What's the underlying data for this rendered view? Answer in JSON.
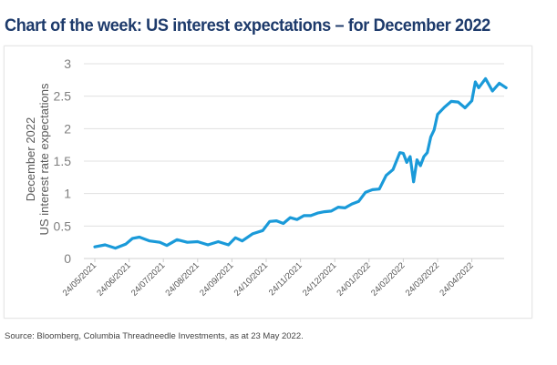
{
  "title": "Chart of the week: US interest expectations – for December 2022",
  "source": "Source: Bloomberg, Columbia Threadneedle Investments, as at 23 May  2022.",
  "colors": {
    "title": "#1d3a6b",
    "line": "#1a9ad9",
    "grid": "#e0e0e0",
    "axis_text": "#7f7f7f"
  },
  "chart_data": {
    "type": "line",
    "title": "Chart of the week: US interest expectations – for December 2022",
    "xlabel": "",
    "ylabel": [
      "December 2022",
      "US interest rate expectations"
    ],
    "ylim": [
      0,
      3
    ],
    "yticks": [
      "0",
      "0.5",
      "1",
      "1.5",
      "2",
      "2.5",
      "3"
    ],
    "ytick_values": [
      0,
      0.5,
      1,
      1.5,
      2,
      2.5,
      3
    ],
    "xticks": [
      "24/05/2021",
      "24/06/2021",
      "24/07/2021",
      "24/08/2021",
      "24/09/2021",
      "24/10/2021",
      "24/11/2021",
      "24/12/2021",
      "24/01/2022",
      "24/02/2022",
      "24/03/2022",
      "24/04/2022"
    ],
    "xlim_months": [
      0,
      12
    ],
    "grid": true,
    "legend": "none",
    "series": [
      {
        "name": "December 2022 US interest rate expectations",
        "x_months": [
          0,
          0.3,
          0.6,
          0.9,
          1.1,
          1.3,
          1.6,
          1.9,
          2.1,
          2.4,
          2.7,
          3.0,
          3.3,
          3.6,
          3.9,
          4.1,
          4.3,
          4.6,
          4.9,
          5.1,
          5.3,
          5.5,
          5.7,
          5.9,
          6.1,
          6.3,
          6.5,
          6.7,
          6.9,
          7.1,
          7.3,
          7.5,
          7.7,
          7.9,
          8.1,
          8.3,
          8.5,
          8.7,
          8.9,
          9.0,
          9.1,
          9.2,
          9.3,
          9.4,
          9.5,
          9.6,
          9.7,
          9.8,
          9.9,
          10.0,
          10.2,
          10.4,
          10.6,
          10.8,
          11.0,
          11.1,
          11.2,
          11.4,
          11.6,
          11.8,
          12.0
        ],
        "values": [
          0.2,
          0.19,
          0.18,
          0.2,
          0.33,
          0.31,
          0.29,
          0.23,
          0.22,
          0.27,
          0.27,
          0.24,
          0.23,
          0.24,
          0.23,
          0.3,
          0.29,
          0.36,
          0.45,
          0.55,
          0.6,
          0.52,
          0.65,
          0.58,
          0.68,
          0.64,
          0.72,
          0.7,
          0.75,
          0.77,
          0.8,
          0.82,
          0.9,
          1.0,
          1.08,
          1.05,
          1.3,
          1.35,
          1.65,
          1.6,
          1.5,
          1.55,
          1.2,
          1.5,
          1.45,
          1.55,
          1.65,
          1.85,
          2.0,
          2.2,
          2.35,
          2.4,
          2.43,
          2.3,
          2.45,
          2.7,
          2.65,
          2.75,
          2.6,
          2.68,
          2.65
        ]
      }
    ]
  }
}
